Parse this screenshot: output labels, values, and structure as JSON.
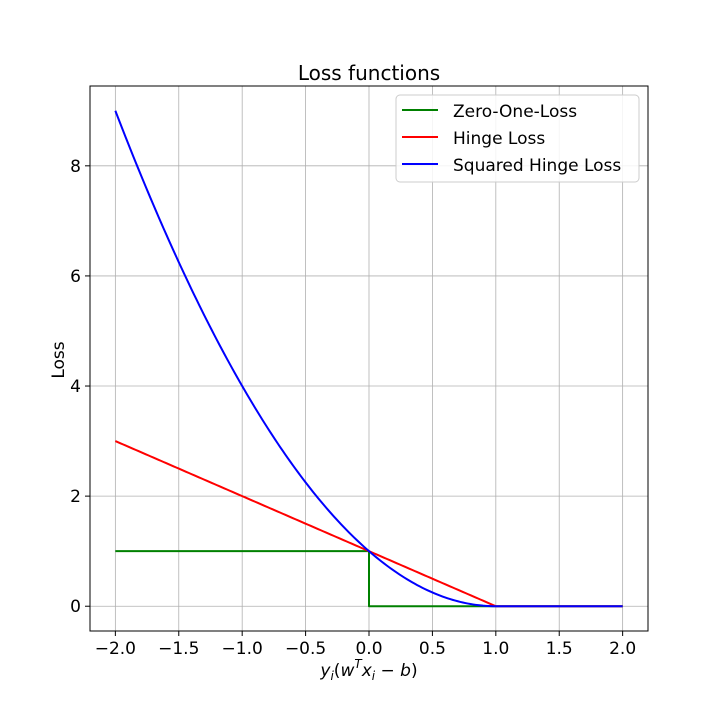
{
  "chart_data": {
    "type": "line",
    "title": "Loss functions",
    "xlabel": "y_i(w^T x_i − b)",
    "ylabel": "Loss",
    "xlim": [
      -2.2,
      2.2
    ],
    "ylim": [
      -0.45,
      9.45
    ],
    "xticks": [
      -2.0,
      -1.5,
      -1.0,
      -0.5,
      0.0,
      0.5,
      1.0,
      1.5,
      2.0
    ],
    "xtick_labels": [
      "−2.0",
      "−1.5",
      "−1.0",
      "−0.5",
      "0.0",
      "0.5",
      "1.0",
      "1.5",
      "2.0"
    ],
    "yticks": [
      0,
      2,
      4,
      6,
      8
    ],
    "ytick_labels": [
      "0",
      "2",
      "4",
      "6",
      "8"
    ],
    "grid": true,
    "legend_position": "top-right",
    "series": [
      {
        "name": "Zero-One-Loss",
        "color": "#008000",
        "kind": "step",
        "points": [
          [
            -2.0,
            1.0
          ],
          [
            0.0,
            1.0
          ],
          [
            0.0,
            0.0
          ],
          [
            2.0,
            0.0
          ]
        ]
      },
      {
        "name": "Hinge Loss",
        "color": "#ff0000",
        "kind": "hinge",
        "points": [
          [
            -2.0,
            3.0
          ],
          [
            -1.0,
            2.0
          ],
          [
            0.0,
            1.0
          ],
          [
            1.0,
            0.0
          ],
          [
            2.0,
            0.0
          ]
        ]
      },
      {
        "name": "Squared Hinge Loss",
        "color": "#0000ff",
        "kind": "squared_hinge",
        "points": [
          [
            -2.0,
            9.0
          ],
          [
            -1.0,
            4.0
          ],
          [
            0.0,
            1.0
          ],
          [
            1.0,
            0.0
          ],
          [
            2.0,
            0.0
          ]
        ]
      }
    ]
  }
}
